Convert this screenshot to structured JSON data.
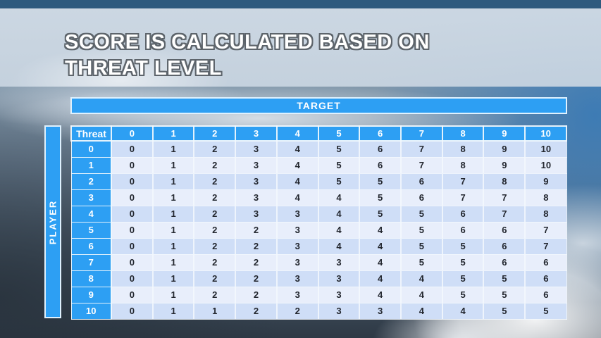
{
  "slide_title": "SCORE IS CALCULATED BASED ON THREAT LEVEL",
  "matrix": {
    "target_label": "TARGET",
    "player_label": "PLAYER",
    "corner_label": "Threat",
    "column_headers": [
      "0",
      "1",
      "2",
      "3",
      "4",
      "5",
      "6",
      "7",
      "8",
      "9",
      "10"
    ],
    "row_headers": [
      "0",
      "1",
      "2",
      "3",
      "4",
      "5",
      "6",
      "7",
      "8",
      "9",
      "10"
    ],
    "scores": [
      [
        0,
        1,
        2,
        3,
        4,
        5,
        6,
        7,
        8,
        9,
        10
      ],
      [
        0,
        1,
        2,
        3,
        4,
        5,
        6,
        7,
        8,
        9,
        10
      ],
      [
        0,
        1,
        2,
        3,
        4,
        5,
        5,
        6,
        7,
        8,
        9
      ],
      [
        0,
        1,
        2,
        3,
        4,
        4,
        5,
        6,
        7,
        7,
        8
      ],
      [
        0,
        1,
        2,
        3,
        3,
        4,
        5,
        5,
        6,
        7,
        8
      ],
      [
        0,
        1,
        2,
        2,
        3,
        4,
        4,
        5,
        6,
        6,
        7
      ],
      [
        0,
        1,
        2,
        2,
        3,
        4,
        4,
        5,
        5,
        6,
        7
      ],
      [
        0,
        1,
        2,
        2,
        3,
        3,
        4,
        5,
        5,
        6,
        6
      ],
      [
        0,
        1,
        2,
        2,
        3,
        3,
        4,
        4,
        5,
        5,
        6
      ],
      [
        0,
        1,
        2,
        2,
        3,
        3,
        4,
        4,
        5,
        5,
        6
      ],
      [
        0,
        1,
        1,
        2,
        2,
        3,
        3,
        4,
        4,
        5,
        5
      ]
    ]
  },
  "colors": {
    "accent_blue": "#2d9ff3",
    "row_even": "#cfdef7",
    "row_odd": "#e8eefb",
    "top_band": "#2e5a7e",
    "banner": "#ccd8e3",
    "cell_text": "#22262e"
  }
}
